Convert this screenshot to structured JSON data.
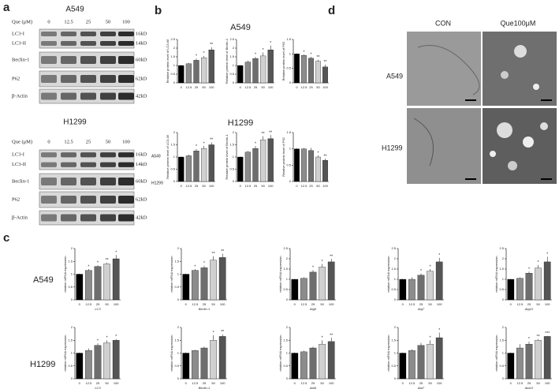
{
  "panels": {
    "a": {
      "label": "a",
      "blots": [
        {
          "title": "A549",
          "dose_label": "Que (μM)",
          "doses": [
            "0",
            "12.5",
            "25",
            "50",
            "100"
          ],
          "rows": [
            {
              "labels": [
                "LC3-I",
                "LC3-II"
              ],
              "kd": [
                "16kD",
                "14kD"
              ]
            },
            {
              "labels": [
                "Beclin-1"
              ],
              "kd": [
                "60kD"
              ]
            },
            {
              "labels": [
                "P62"
              ],
              "kd": [
                "62kD"
              ]
            },
            {
              "labels": [
                "β-Actin"
              ],
              "kd": [
                "42kD"
              ]
            }
          ]
        },
        {
          "title": "H1299",
          "dose_label": "Que (μM)",
          "doses": [
            "0",
            "12.5",
            "25",
            "50",
            "100"
          ],
          "rows": [
            {
              "labels": [
                "LC3-I",
                "LC3-II"
              ],
              "kd": [
                "16kD",
                "14kD"
              ]
            },
            {
              "labels": [
                "Beclin-1"
              ],
              "kd": [
                "60kD"
              ]
            },
            {
              "labels": [
                "P62"
              ],
              "kd": [
                "62kD"
              ]
            },
            {
              "labels": [
                "β-Actin"
              ],
              "kd": [
                "42kD"
              ]
            }
          ]
        }
      ]
    },
    "b": {
      "label": "b",
      "titles": [
        "A549",
        "H1299"
      ],
      "side_labels": [
        "A549",
        "H1299"
      ]
    },
    "c": {
      "label": "c",
      "rows": [
        "A549",
        "H1299"
      ]
    },
    "d": {
      "label": "d",
      "columns": [
        "CON",
        "Que100μM"
      ],
      "rows": [
        "A549",
        "H1299"
      ]
    }
  },
  "chart_data": [
    {
      "type": "bar",
      "ylabel": "Relative protein level of LC3-II/I",
      "categories": [
        "0",
        "12.5",
        "25",
        "50",
        "100"
      ],
      "values": [
        1.0,
        1.1,
        1.3,
        1.45,
        1.9
      ],
      "errors": [
        0.02,
        0.05,
        0.1,
        0.1,
        0.15
      ],
      "annotations": [
        null,
        null,
        "*",
        "*",
        "**"
      ],
      "colors": [
        "#000000",
        "#8c8c8c",
        "#6e6e6e",
        "#d0d0d0",
        "#555555"
      ],
      "ylim": [
        0,
        2.5
      ],
      "yticks": [
        0,
        0.5,
        1,
        1.5,
        2,
        2.5
      ]
    },
    {
      "type": "bar",
      "ylabel": "Relative protein level of Beclin-1",
      "categories": [
        "0",
        "12.5",
        "25",
        "50",
        "100"
      ],
      "values": [
        1.0,
        1.2,
        1.4,
        1.55,
        1.9
      ],
      "errors": [
        0.02,
        0.08,
        0.1,
        0.2,
        0.25
      ],
      "annotations": [
        null,
        null,
        "*",
        "*",
        "*"
      ],
      "colors": [
        "#000000",
        "#8c8c8c",
        "#6e6e6e",
        "#d0d0d0",
        "#555555"
      ],
      "ylim": [
        0,
        2.5
      ],
      "yticks": [
        0,
        0.5,
        1,
        1.5,
        2,
        2.5
      ]
    },
    {
      "type": "bar",
      "ylabel": "Relative protein level of P62",
      "categories": [
        "0",
        "12.5",
        "25",
        "50",
        "100"
      ],
      "values": [
        1.0,
        0.95,
        0.85,
        0.75,
        0.55
      ],
      "errors": [
        0.02,
        0.03,
        0.05,
        0.05,
        0.08
      ],
      "annotations": [
        null,
        "*",
        "*",
        "**",
        "**"
      ],
      "colors": [
        "#000000",
        "#8c8c8c",
        "#6e6e6e",
        "#d0d0d0",
        "#555555"
      ],
      "ylim": [
        0,
        1.5
      ],
      "yticks": [
        0,
        0.5,
        1,
        1.5
      ]
    },
    {
      "type": "bar",
      "ylabel": "Relative protein level of LC3-II/I",
      "categories": [
        "0",
        "12.5",
        "25",
        "50",
        "100"
      ],
      "values": [
        1.0,
        1.05,
        1.25,
        1.35,
        1.5
      ],
      "errors": [
        0.02,
        0.05,
        0.08,
        0.1,
        0.1
      ],
      "annotations": [
        null,
        null,
        "*",
        "*",
        "**"
      ],
      "colors": [
        "#000000",
        "#8c8c8c",
        "#6e6e6e",
        "#d0d0d0",
        "#555555"
      ],
      "ylim": [
        0,
        2
      ],
      "yticks": [
        0,
        0.5,
        1,
        1.5,
        2
      ]
    },
    {
      "type": "bar",
      "ylabel": "Relative protein level of Beclin-1",
      "categories": [
        "0",
        "12.5",
        "25",
        "50",
        "100"
      ],
      "values": [
        1.0,
        1.2,
        1.35,
        1.7,
        1.75
      ],
      "errors": [
        0.02,
        0.05,
        0.1,
        0.15,
        0.15
      ],
      "annotations": [
        null,
        null,
        "*",
        "**",
        "**"
      ],
      "colors": [
        "#000000",
        "#8c8c8c",
        "#6e6e6e",
        "#d0d0d0",
        "#555555"
      ],
      "ylim": [
        0,
        2
      ],
      "yticks": [
        0,
        0.5,
        1,
        1.5,
        2
      ]
    },
    {
      "type": "bar",
      "ylabel": "Relative protein level of P62",
      "categories": [
        "0",
        "12.5",
        "25",
        "50",
        "100"
      ],
      "values": [
        1.0,
        1.0,
        0.95,
        0.75,
        0.65
      ],
      "errors": [
        0.02,
        0.03,
        0.08,
        0.05,
        0.05
      ],
      "annotations": [
        null,
        null,
        null,
        "*",
        "**"
      ],
      "colors": [
        "#000000",
        "#8c8c8c",
        "#6e6e6e",
        "#d0d0d0",
        "#555555"
      ],
      "ylim": [
        0,
        1.5
      ],
      "yticks": [
        0,
        0.5,
        1,
        1.5
      ]
    },
    {
      "type": "bar",
      "ylabel": "relative mRNA expression",
      "xlabel": "LC3",
      "categories": [
        "0",
        "12.5",
        "25",
        "50",
        "100"
      ],
      "values": [
        1.0,
        1.15,
        1.3,
        1.4,
        1.6
      ],
      "errors": [
        0.02,
        0.05,
        0.05,
        0.05,
        0.15
      ],
      "annotations": [
        null,
        "*",
        "*",
        "**",
        "*"
      ],
      "colors": [
        "#000000",
        "#8c8c8c",
        "#6e6e6e",
        "#d0d0d0",
        "#555555"
      ],
      "ylim": [
        0,
        2
      ],
      "yticks": [
        0,
        0.5,
        1,
        1.5,
        2
      ]
    },
    {
      "type": "bar",
      "ylabel": "relative mRNA expression",
      "xlabel": "Beclin-1",
      "categories": [
        "0",
        "12.5",
        "25",
        "50",
        "100"
      ],
      "values": [
        1.0,
        1.15,
        1.25,
        1.55,
        1.65
      ],
      "errors": [
        0.02,
        0.05,
        0.08,
        0.15,
        0.15
      ],
      "annotations": [
        null,
        "*",
        "*",
        "**",
        "**"
      ],
      "colors": [
        "#000000",
        "#8c8c8c",
        "#6e6e6e",
        "#d0d0d0",
        "#555555"
      ],
      "ylim": [
        0,
        2
      ],
      "yticks": [
        0,
        0.5,
        1,
        1.5,
        2
      ]
    },
    {
      "type": "bar",
      "ylabel": "relative mRNA expression",
      "xlabel": "Atg5",
      "categories": [
        "0",
        "12.5",
        "25",
        "50",
        "100"
      ],
      "values": [
        1.0,
        1.05,
        1.35,
        1.6,
        1.85
      ],
      "errors": [
        0.02,
        0.05,
        0.1,
        0.15,
        0.15
      ],
      "annotations": [
        null,
        null,
        "*",
        "*",
        "**"
      ],
      "colors": [
        "#000000",
        "#8c8c8c",
        "#6e6e6e",
        "#d0d0d0",
        "#555555"
      ],
      "ylim": [
        0,
        2.5
      ],
      "yticks": [
        0,
        0.5,
        1,
        1.5,
        2,
        2.5
      ]
    },
    {
      "type": "bar",
      "ylabel": "relative mRNA expression",
      "xlabel": "Atg7",
      "categories": [
        "0",
        "12.5",
        "25",
        "50",
        "100"
      ],
      "values": [
        1.0,
        1.0,
        1.2,
        1.4,
        1.85
      ],
      "errors": [
        0.02,
        0.1,
        0.08,
        0.1,
        0.2
      ],
      "annotations": [
        null,
        null,
        "*",
        "*",
        "*"
      ],
      "colors": [
        "#000000",
        "#8c8c8c",
        "#6e6e6e",
        "#d0d0d0",
        "#555555"
      ],
      "ylim": [
        0,
        2.5
      ],
      "yticks": [
        0,
        0.5,
        1,
        1.5,
        2,
        2.5
      ]
    },
    {
      "type": "bar",
      "ylabel": "relative mRNA expression",
      "xlabel": "Atg12",
      "categories": [
        "0",
        "12.5",
        "25",
        "50",
        "100"
      ],
      "values": [
        1.0,
        1.05,
        1.3,
        1.55,
        1.85
      ],
      "errors": [
        0.02,
        0.05,
        0.08,
        0.15,
        0.25
      ],
      "annotations": [
        null,
        null,
        "*",
        "*",
        "*"
      ],
      "colors": [
        "#000000",
        "#8c8c8c",
        "#6e6e6e",
        "#d0d0d0",
        "#555555"
      ],
      "ylim": [
        0,
        2.5
      ],
      "yticks": [
        0,
        0.5,
        1,
        1.5,
        2,
        2.5
      ]
    },
    {
      "type": "bar",
      "ylabel": "relative mRNA expression",
      "xlabel": "LC3",
      "categories": [
        "0",
        "12.5",
        "25",
        "50",
        "100"
      ],
      "values": [
        1.0,
        1.1,
        1.3,
        1.4,
        1.5
      ],
      "errors": [
        0.02,
        0.08,
        0.08,
        0.1,
        0.05
      ],
      "annotations": [
        null,
        null,
        "*",
        "*",
        "*"
      ],
      "colors": [
        "#000000",
        "#8c8c8c",
        "#6e6e6e",
        "#d0d0d0",
        "#555555"
      ],
      "ylim": [
        0,
        2
      ],
      "yticks": [
        0,
        0.5,
        1,
        1.5,
        2
      ]
    },
    {
      "type": "bar",
      "ylabel": "relative mRNA expression",
      "xlabel": "Beclin-1",
      "categories": [
        "0",
        "12.5",
        "25",
        "50",
        "100"
      ],
      "values": [
        1.0,
        1.1,
        1.2,
        1.5,
        1.65
      ],
      "errors": [
        0.02,
        0.03,
        0.05,
        0.2,
        0.08
      ],
      "annotations": [
        null,
        null,
        null,
        "*",
        "**"
      ],
      "colors": [
        "#000000",
        "#8c8c8c",
        "#6e6e6e",
        "#d0d0d0",
        "#555555"
      ],
      "ylim": [
        0,
        2
      ],
      "yticks": [
        0,
        0.5,
        1,
        1.5,
        2
      ]
    },
    {
      "type": "bar",
      "ylabel": "relative mRNA expression",
      "xlabel": "Atg5",
      "categories": [
        "0",
        "12.5",
        "25",
        "50",
        "100"
      ],
      "values": [
        1.0,
        1.05,
        1.2,
        1.35,
        1.45
      ],
      "errors": [
        0.02,
        0.05,
        0.05,
        0.15,
        0.15
      ],
      "annotations": [
        null,
        null,
        null,
        "*",
        "**"
      ],
      "colors": [
        "#000000",
        "#8c8c8c",
        "#6e6e6e",
        "#d0d0d0",
        "#555555"
      ],
      "ylim": [
        0,
        2
      ],
      "yticks": [
        0,
        0.5,
        1,
        1.5,
        2
      ]
    },
    {
      "type": "bar",
      "ylabel": "relative mRNA expression",
      "xlabel": "Atg7",
      "categories": [
        "0",
        "12.5",
        "25",
        "50",
        "100"
      ],
      "values": [
        1.0,
        1.1,
        1.3,
        1.35,
        1.6
      ],
      "errors": [
        0.02,
        0.05,
        0.1,
        0.15,
        0.2
      ],
      "annotations": [
        null,
        null,
        null,
        "*",
        "*"
      ],
      "colors": [
        "#000000",
        "#8c8c8c",
        "#6e6e6e",
        "#d0d0d0",
        "#555555"
      ],
      "ylim": [
        0,
        2
      ],
      "yticks": [
        0,
        0.5,
        1,
        1.5,
        2
      ]
    },
    {
      "type": "bar",
      "ylabel": "relative mRNA expression",
      "xlabel": "Atg12",
      "categories": [
        "0",
        "12.5",
        "25",
        "50",
        "100"
      ],
      "values": [
        1.0,
        1.2,
        1.35,
        1.5,
        1.65
      ],
      "errors": [
        0.02,
        0.15,
        0.1,
        0.05,
        0.02
      ],
      "annotations": [
        null,
        null,
        "*",
        "**",
        "***"
      ],
      "colors": [
        "#000000",
        "#8c8c8c",
        "#6e6e6e",
        "#d0d0d0",
        "#555555"
      ],
      "ylim": [
        0,
        2
      ],
      "yticks": [
        0,
        0.5,
        1,
        1.5,
        2
      ]
    }
  ]
}
